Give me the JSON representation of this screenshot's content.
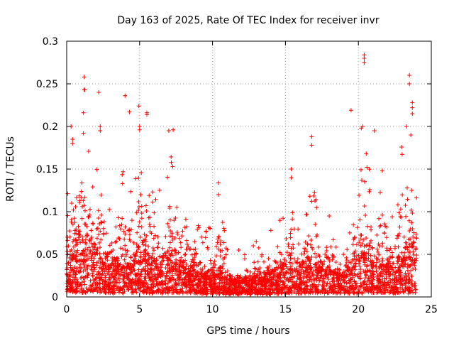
{
  "chart_data": {
    "type": "scatter",
    "title": "Day 163 of 2025, Rate Of TEC Index for receiver invr",
    "xlabel": "GPS time / hours",
    "ylabel": "ROTI / TECUs",
    "xlim": [
      0,
      25
    ],
    "ylim": [
      0,
      0.3
    ],
    "xticks": [
      0,
      5,
      10,
      15,
      20,
      25
    ],
    "xtick_labels": [
      "0",
      "5",
      "10",
      "15",
      "20",
      "25"
    ],
    "yticks": [
      0,
      0.05,
      0.1,
      0.15,
      0.2,
      0.25,
      0.3
    ],
    "ytick_labels": [
      "0",
      "0.05",
      "0.1",
      "0.15",
      "0.2",
      "0.25",
      "0.3"
    ],
    "grid": true,
    "marker": "+",
    "series": [
      {
        "name": "ROTI",
        "color": "#ff0000",
        "x_range": [
          0,
          24
        ],
        "envelope": {
          "hours": [
            0,
            0.5,
            1,
            1.5,
            2,
            2.5,
            3,
            3.5,
            4,
            4.5,
            5,
            5.5,
            6,
            6.5,
            7,
            7.5,
            8,
            8.5,
            9,
            9.5,
            10,
            10.5,
            11,
            11.5,
            12,
            12.5,
            13,
            13.5,
            14,
            14.5,
            15,
            15.5,
            16,
            16.5,
            17,
            17.5,
            18,
            18.5,
            19,
            19.5,
            20,
            20.5,
            21,
            21.5,
            22,
            22.5,
            23,
            23.5,
            24
          ],
          "upper": [
            0.12,
            0.19,
            0.21,
            0.17,
            0.19,
            0.13,
            0.11,
            0.13,
            0.16,
            0.14,
            0.2,
            0.16,
            0.12,
            0.11,
            0.14,
            0.18,
            0.1,
            0.1,
            0.09,
            0.08,
            0.07,
            0.13,
            0.05,
            0.04,
            0.04,
            0.05,
            0.06,
            0.05,
            0.07,
            0.08,
            0.13,
            0.1,
            0.08,
            0.12,
            0.17,
            0.09,
            0.08,
            0.07,
            0.06,
            0.08,
            0.19,
            0.18,
            0.16,
            0.14,
            0.11,
            0.12,
            0.16,
            0.2,
            0.13
          ],
          "median": [
            0.03,
            0.045,
            0.05,
            0.045,
            0.045,
            0.035,
            0.03,
            0.03,
            0.035,
            0.03,
            0.04,
            0.035,
            0.03,
            0.03,
            0.035,
            0.035,
            0.028,
            0.025,
            0.022,
            0.02,
            0.02,
            0.022,
            0.017,
            0.015,
            0.015,
            0.015,
            0.017,
            0.018,
            0.02,
            0.022,
            0.03,
            0.028,
            0.025,
            0.028,
            0.035,
            0.025,
            0.022,
            0.022,
            0.022,
            0.025,
            0.045,
            0.04,
            0.035,
            0.032,
            0.03,
            0.03,
            0.035,
            0.045,
            0.035
          ],
          "lower": [
            0.005,
            0.005,
            0.005,
            0.005,
            0.005,
            0.005,
            0.005,
            0.005,
            0.005,
            0.005,
            0.005,
            0.005,
            0.005,
            0.005,
            0.005,
            0.005,
            0.004,
            0.004,
            0.004,
            0.003,
            0.003,
            0.003,
            0.003,
            0.003,
            0.003,
            0.003,
            0.003,
            0.003,
            0.003,
            0.003,
            0.004,
            0.004,
            0.004,
            0.004,
            0.004,
            0.004,
            0.004,
            0.004,
            0.004,
            0.004,
            0.005,
            0.005,
            0.005,
            0.005,
            0.005,
            0.005,
            0.005,
            0.005,
            0.005
          ]
        },
        "outliers": [
          [
            1.2,
            0.258
          ],
          [
            1.2,
            0.243
          ],
          [
            1.25,
            0.243
          ],
          [
            2.2,
            0.24
          ],
          [
            4.0,
            0.236
          ],
          [
            4.3,
            0.217
          ],
          [
            4.95,
            0.224
          ],
          [
            5.5,
            0.216
          ],
          [
            5.5,
            0.214
          ],
          [
            20.4,
            0.284
          ],
          [
            20.4,
            0.28
          ],
          [
            20.4,
            0.275
          ],
          [
            23.5,
            0.26
          ],
          [
            23.5,
            0.25
          ],
          [
            23.7,
            0.228
          ],
          [
            23.7,
            0.222
          ],
          [
            23.7,
            0.215
          ],
          [
            19.5,
            0.219
          ],
          [
            1.15,
            0.216
          ],
          [
            0.3,
            0.2
          ],
          [
            0.4,
            0.185
          ],
          [
            0.4,
            0.18
          ],
          [
            2.3,
            0.2
          ],
          [
            2.3,
            0.195
          ],
          [
            5.0,
            0.2
          ],
          [
            5.0,
            0.196
          ],
          [
            7.3,
            0.196
          ],
          [
            7.0,
            0.195
          ],
          [
            20.3,
            0.2
          ],
          [
            20.2,
            0.198
          ],
          [
            21.1,
            0.195
          ],
          [
            16.8,
            0.188
          ],
          [
            16.8,
            0.178
          ],
          [
            23.3,
            0.2
          ],
          [
            23.6,
            0.19
          ],
          [
            10.4,
            0.134
          ],
          [
            10.4,
            0.12
          ],
          [
            15.4,
            0.15
          ],
          [
            15.4,
            0.14
          ],
          [
            18.0,
            0.095
          ],
          [
            12.8,
            0.06
          ],
          [
            13.0,
            0.065
          ],
          [
            14.0,
            0.078
          ],
          [
            11.8,
            0.055
          ]
        ]
      }
    ]
  }
}
